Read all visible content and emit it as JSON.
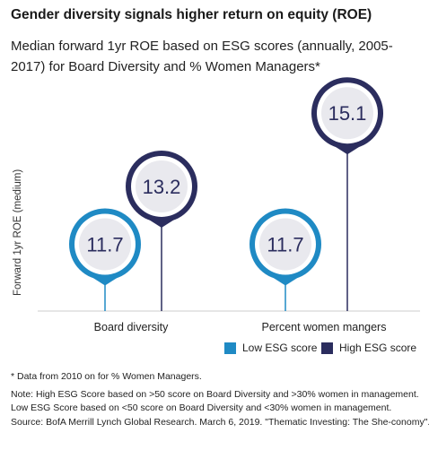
{
  "chart_data": {
    "type": "bar",
    "title": "Gender diversity signals higher return on equity (ROE)",
    "subtitle": "Median forward 1yr ROE based on ESG scores (annually, 2005-2017) for Board Diversity and % Women Managers*",
    "ylabel": "Forward 1yr ROE (medium)",
    "xlabel": "",
    "categories": [
      "Board diversity",
      "Percent women mangers"
    ],
    "series": [
      {
        "name": "Low ESG score",
        "values": [
          11.7,
          11.7
        ],
        "labels": [
          "11.7",
          "11.7"
        ],
        "color": "#1f8ac4"
      },
      {
        "name": "High ESG score",
        "values": [
          13.2,
          15.1
        ],
        "labels": [
          "13.2",
          "15.1"
        ],
        "color": "#2b2d5e"
      }
    ],
    "ylim": [
      10.2,
      15.5
    ],
    "grid": false,
    "legend_position": "bottom-right"
  },
  "notes": [
    "* Data from 2010 on for % Women Managers.",
    "Note: High ESG Score based on >50 score on Board Diversity and >30% women in management.",
    "Low ESG Score based on <50 score on Board Diversity and <30% women in management.",
    "Source: BofA Merrill Lynch Global Research. March 6, 2019. \"Thematic Investing: The She-conomy\"."
  ]
}
